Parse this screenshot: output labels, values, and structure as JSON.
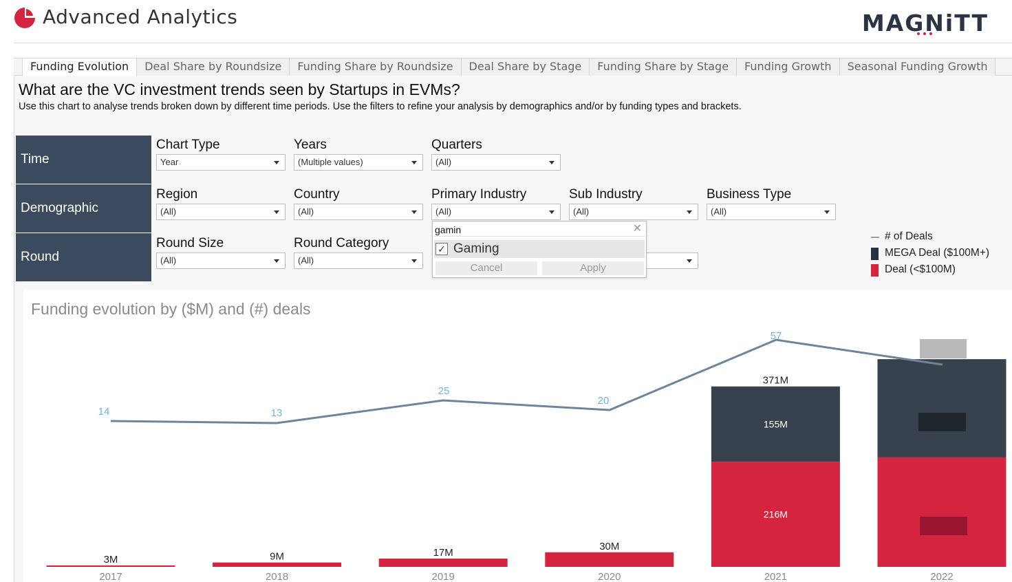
{
  "header": {
    "app_title": "Advanced Analytics",
    "brand": "MAGNiTT",
    "logo_icon": "pie-chart-icon"
  },
  "tabs": [
    {
      "label": "Funding Evolution",
      "active": true
    },
    {
      "label": "Deal Share by Roundsize",
      "active": false
    },
    {
      "label": "Funding Share by Roundsize",
      "active": false
    },
    {
      "label": "Deal Share by Stage",
      "active": false
    },
    {
      "label": "Funding Share by Stage",
      "active": false
    },
    {
      "label": "Funding Growth",
      "active": false
    },
    {
      "label": "Seasonal Funding Growth",
      "active": false
    }
  ],
  "question": {
    "title": "What are the VC investment trends seen by Startups in EVMs?",
    "description": "Use this chart to analyse trends broken down by different time periods. Use the filters to refine your analysis by demographics and/or by funding types and brackets."
  },
  "sections": {
    "time": "Time",
    "demographic": "Demographic",
    "round": "Round"
  },
  "filters": {
    "chart_type": {
      "label": "Chart Type",
      "value": "Year"
    },
    "years": {
      "label": "Years",
      "value": "(Multiple values)"
    },
    "quarters": {
      "label": "Quarters",
      "value": "(All)"
    },
    "region": {
      "label": "Region",
      "value": "(All)"
    },
    "country": {
      "label": "Country",
      "value": "(All)"
    },
    "primary_industry": {
      "label": "Primary Industry",
      "value": "(All)"
    },
    "sub_industry": {
      "label": "Sub Industry",
      "value": "(All)"
    },
    "business_type": {
      "label": "Business Type",
      "value": "(All)"
    },
    "round_size": {
      "label": "Round Size",
      "value": "(All)"
    },
    "round_category": {
      "label": "Round Category",
      "value": "(All)"
    },
    "hidden_filter": {
      "value": ""
    }
  },
  "popup": {
    "search_value": "gamin",
    "clear_icon": "close-icon",
    "option_label": "Gaming",
    "option_checked": true,
    "cancel_label": "Cancel",
    "apply_label": "Apply"
  },
  "legend": [
    {
      "label": "# of Deals",
      "kind": "line",
      "color": "#8aa2ba"
    },
    {
      "label": "MEGA Deal ($100M+)",
      "kind": "swatch",
      "color": "#263140"
    },
    {
      "label": "Deal (<$100M)",
      "kind": "swatch",
      "color": "#d4243f"
    }
  ],
  "colors": {
    "mega": "#38424c",
    "deal": "#d4243f",
    "line": "#6e849b",
    "count_label": "#6fb6e0",
    "section_bg": "#3b4a5c"
  },
  "chart_data": {
    "type": "bar",
    "title": "Funding evolution by ($M) and (#) deals",
    "categories": [
      "2017",
      "2018",
      "2019",
      "2020",
      "2021",
      "2022"
    ],
    "series": [
      {
        "name": "Deal (<$100M)",
        "values": [
          3,
          9,
          17,
          30,
          216,
          225
        ]
      },
      {
        "name": "MEGA Deal ($100M+)",
        "values": [
          0,
          0,
          0,
          0,
          155,
          202
        ]
      },
      {
        "name": "# of Deals",
        "type": "line",
        "values": [
          14,
          13,
          25,
          20,
          57,
          null
        ]
      }
    ],
    "total_labels": [
      "3M",
      "9M",
      "17M",
      "30M",
      "371M",
      ""
    ],
    "segment_labels": {
      "deal": [
        "",
        "",
        "",
        "",
        "216M",
        ""
      ],
      "mega": [
        "",
        "",
        "",
        "",
        "155M",
        ""
      ]
    },
    "count_labels": [
      "14",
      "13",
      "25",
      "20",
      "57",
      ""
    ]
  }
}
